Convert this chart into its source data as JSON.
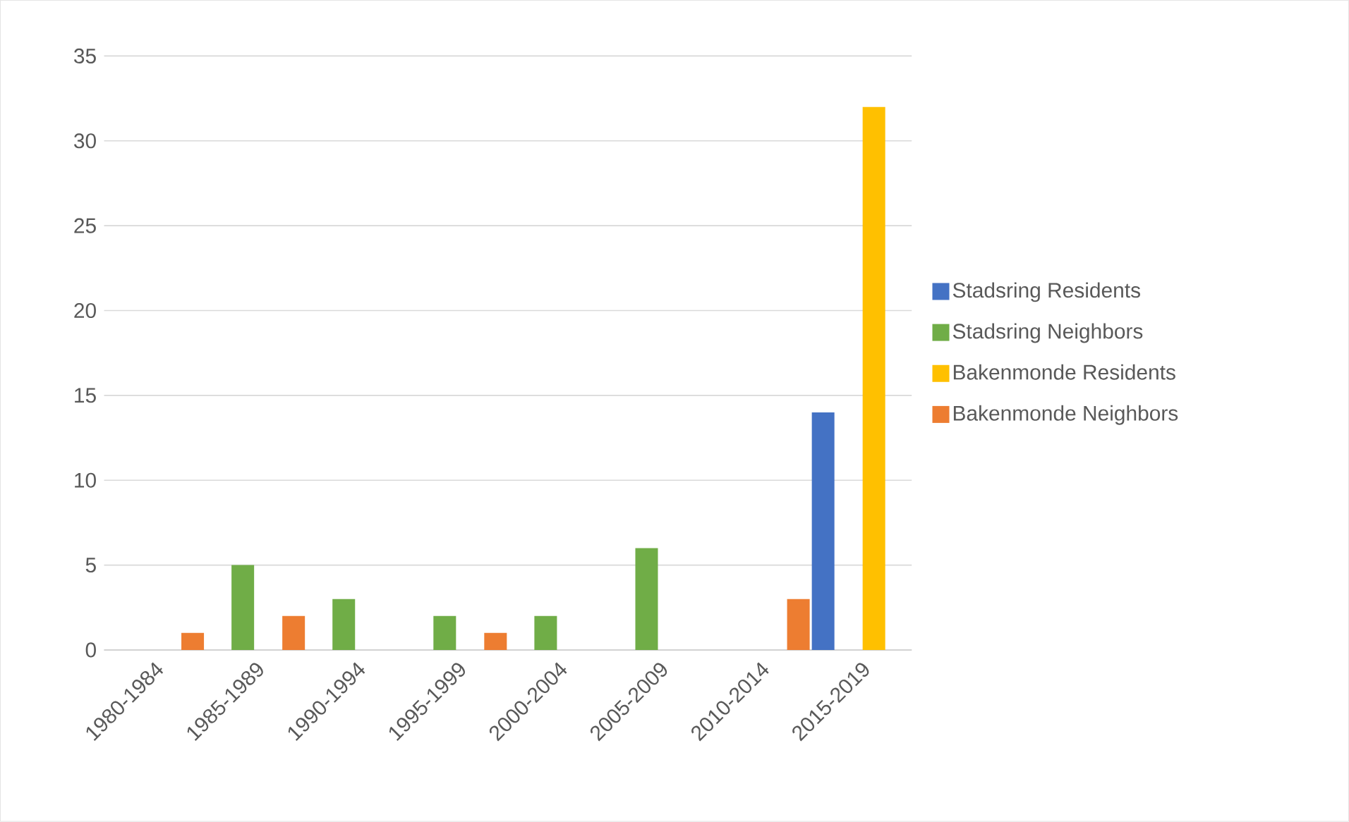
{
  "chart_data": {
    "type": "bar",
    "categories": [
      "1980-1984",
      "1985-1989",
      "1990-1994",
      "1995-1999",
      "2000-2004",
      "2005-2009",
      "2010-2014",
      "2015-2019"
    ],
    "series": [
      {
        "name": "Stadsring Residents",
        "color": "#4472c4",
        "values": [
          null,
          null,
          null,
          null,
          null,
          null,
          null,
          14
        ]
      },
      {
        "name": "Stadsring Neighbors",
        "color": "#70ad47",
        "values": [
          null,
          5,
          3,
          2,
          2,
          6,
          null,
          null
        ]
      },
      {
        "name": "Bakenmonde Residents",
        "color": "#ffc000",
        "values": [
          null,
          null,
          null,
          null,
          null,
          null,
          null,
          32
        ]
      },
      {
        "name": "Bakenmonde Neighbors",
        "color": "#ed7d31",
        "values": [
          1,
          2,
          null,
          1,
          null,
          null,
          3,
          null
        ]
      }
    ],
    "ylim": [
      0,
      35
    ],
    "yticks": [
      0,
      5,
      10,
      15,
      20,
      25,
      30,
      35
    ],
    "grid": "y",
    "legend": "right"
  }
}
